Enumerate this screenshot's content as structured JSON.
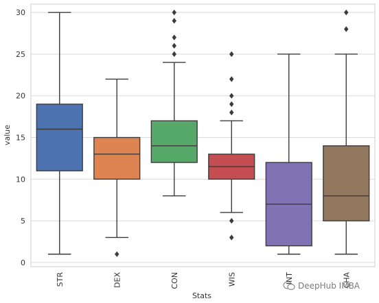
{
  "chart_data": {
    "type": "box",
    "xlabel": "Stats",
    "ylabel": "value",
    "ylim": [
      -0.5,
      31
    ],
    "yticks": [
      0,
      5,
      10,
      15,
      20,
      25,
      30
    ],
    "grid": "horizontal",
    "categories": [
      "STR",
      "DEX",
      "CON",
      "WIS",
      "INT",
      "CHA"
    ],
    "boxes": [
      {
        "name": "STR",
        "whisker_low": 1,
        "q1": 11,
        "median": 16,
        "q3": 19,
        "whisker_high": 30,
        "outliers": [],
        "color": "#4c72b0"
      },
      {
        "name": "DEX",
        "whisker_low": 3,
        "q1": 10,
        "median": 13,
        "q3": 15,
        "whisker_high": 22,
        "outliers": [
          1
        ],
        "color": "#dd8452"
      },
      {
        "name": "CON",
        "whisker_low": 8,
        "q1": 12,
        "median": 14,
        "q3": 17,
        "whisker_high": 24,
        "outliers": [
          25,
          26,
          27,
          29,
          30
        ],
        "color": "#55a868"
      },
      {
        "name": "WIS",
        "whisker_low": 6,
        "q1": 10,
        "median": 11.5,
        "q3": 13,
        "whisker_high": 17,
        "outliers": [
          3,
          5,
          18,
          19,
          20,
          22,
          25
        ],
        "color": "#c44e52"
      },
      {
        "name": "INT",
        "whisker_low": 1,
        "q1": 2,
        "median": 7,
        "q3": 12,
        "whisker_high": 25,
        "outliers": [],
        "color": "#8172b3"
      },
      {
        "name": "CHA",
        "whisker_low": 1,
        "q1": 5,
        "median": 8,
        "q3": 14,
        "whisker_high": 25,
        "outliers": [
          28,
          30
        ],
        "color": "#937860"
      }
    ]
  },
  "watermark": {
    "text": "DeepHub IMBA",
    "icon": "wechat-icon"
  }
}
